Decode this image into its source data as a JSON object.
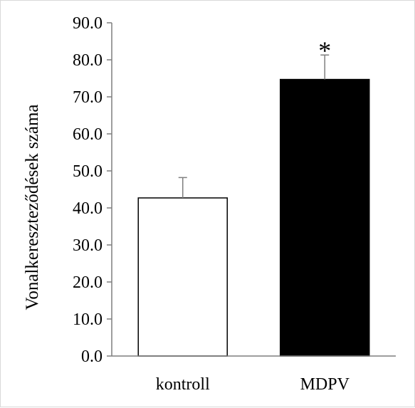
{
  "chart_data": {
    "type": "bar",
    "title": "",
    "xlabel": "",
    "ylabel": "Vonalkereszteződések száma",
    "categories": [
      "kontroll",
      "MDPV"
    ],
    "values": [
      42.7,
      74.7
    ],
    "error": [
      5.5,
      6.6
    ],
    "bar_colors": [
      "#ffffff",
      "#000000"
    ],
    "bar_edge_color": "#000000",
    "significance": [
      "",
      "*"
    ],
    "ylim": [
      0,
      90
    ],
    "yticks": [
      0,
      10,
      20,
      30,
      40,
      50,
      60,
      70,
      80,
      90
    ],
    "ytick_labels": [
      "0.0",
      "10.0",
      "20.0",
      "30.0",
      "40.0",
      "50.0",
      "60.0",
      "70.0",
      "80.0",
      "90.0"
    ],
    "grid": false,
    "legend": "none"
  }
}
